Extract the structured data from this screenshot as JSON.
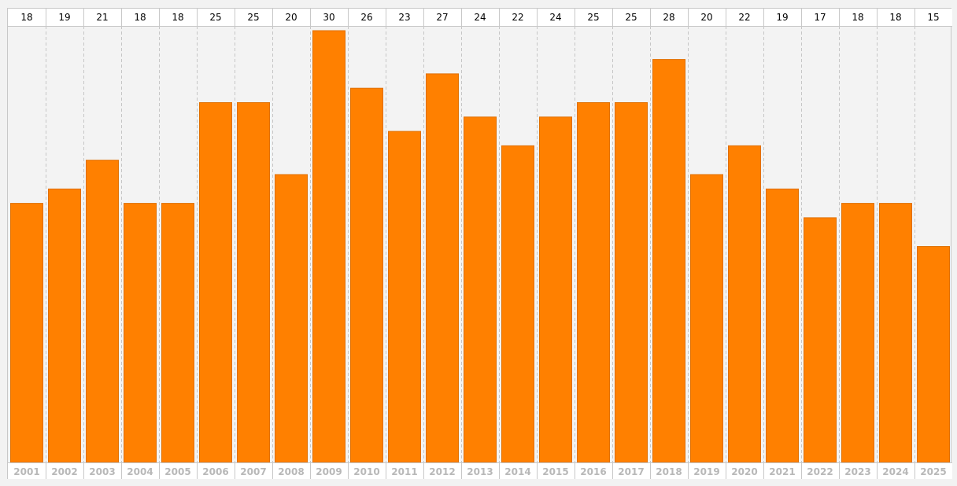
{
  "chart_data": {
    "type": "bar",
    "categories": [
      "2001",
      "2002",
      "2003",
      "2004",
      "2005",
      "2006",
      "2007",
      "2008",
      "2009",
      "2010",
      "2011",
      "2012",
      "2013",
      "2014",
      "2015",
      "2016",
      "2017",
      "2018",
      "2019",
      "2020",
      "2021",
      "2022",
      "2023",
      "2024",
      "2025"
    ],
    "values": [
      18,
      19,
      21,
      18,
      18,
      25,
      25,
      20,
      30,
      26,
      23,
      27,
      24,
      22,
      24,
      25,
      25,
      28,
      20,
      22,
      19,
      17,
      18,
      18,
      15
    ],
    "data_labels": [
      "18",
      "19",
      "21",
      "18",
      "18",
      "25",
      "25",
      "20",
      "30",
      "26",
      "23",
      "27",
      "24",
      "22",
      "24",
      "25",
      "25",
      "28",
      "20",
      "22",
      "19",
      "17",
      "18",
      "18",
      "15"
    ],
    "title": "",
    "xlabel": "",
    "ylabel": "",
    "ylim": [
      0,
      30
    ],
    "grid": "vertical dashed",
    "legend": "none",
    "colors": {
      "bar": "#ff8000",
      "bar_border": "#e06f00",
      "background": "#f3f3f3",
      "label_box": "#ffffff",
      "grid": "#c6c6c6",
      "top_label_text": "#000000",
      "bottom_label_text": "#b8b8b8"
    }
  }
}
